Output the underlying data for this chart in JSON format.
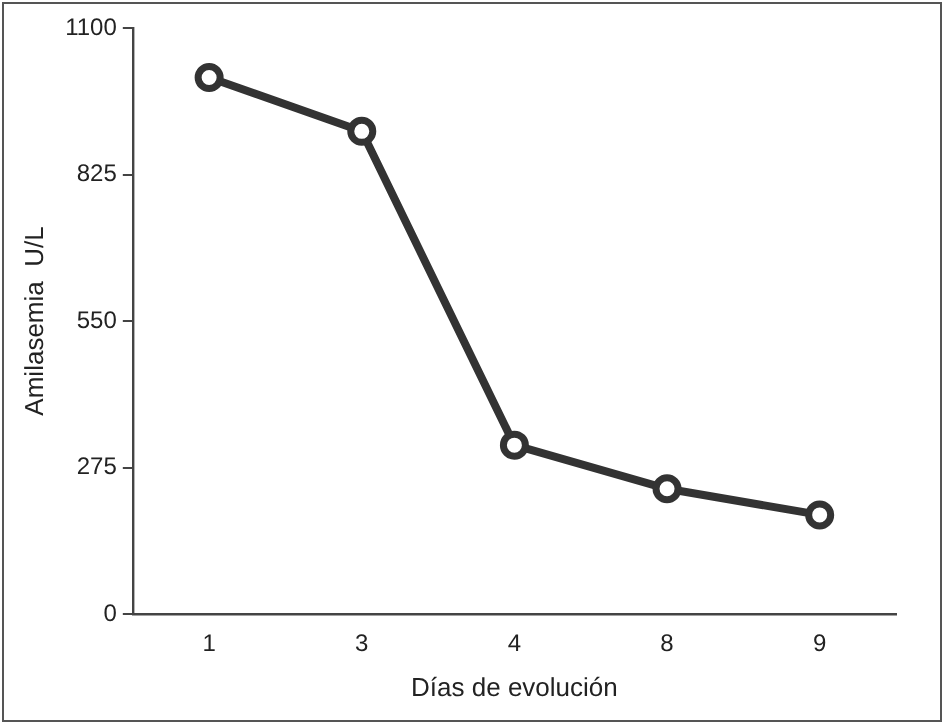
{
  "chart_data": {
    "type": "line",
    "xlabel": "Días de evolución",
    "ylabel": "Amilasemia  U/L",
    "categories": [
      "1",
      "3",
      "4",
      "8",
      "9"
    ],
    "series": [
      {
        "color": "#333333",
        "values": [
          1007,
          906,
          317,
          235,
          186
        ]
      }
    ],
    "ylim": [
      0,
      1100
    ],
    "yticks": [
      0,
      275,
      550,
      825,
      1100
    ],
    "grid": false,
    "legend": false,
    "marker": "circle",
    "line_style": "solid"
  }
}
